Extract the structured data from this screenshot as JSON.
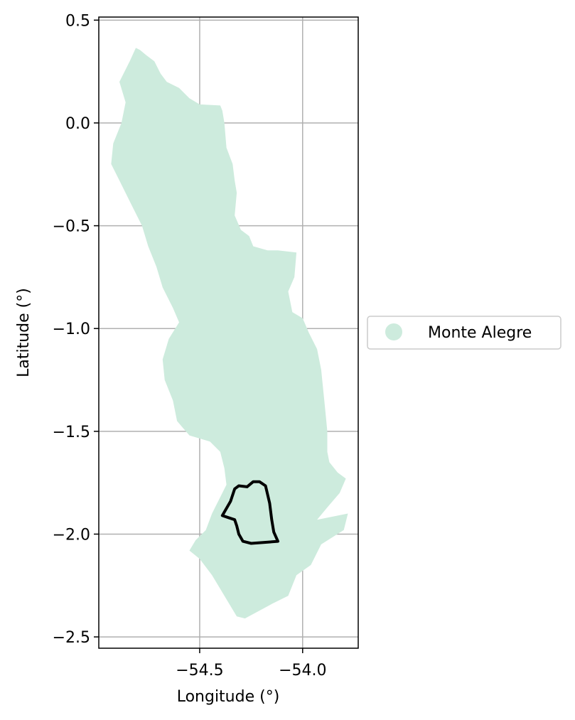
{
  "chart_data": {
    "type": "map",
    "title": "",
    "xlabel": "Longitude (°)",
    "ylabel": "Latitude (°)",
    "xlim": [
      -54.99,
      -53.73
    ],
    "ylim": [
      -2.555,
      0.515
    ],
    "x_ticks": [
      {
        "value": -54.5,
        "label": "−54.5"
      },
      {
        "value": -54.0,
        "label": "−54.0"
      }
    ],
    "y_ticks": [
      {
        "value": 0.5,
        "label": "0.5"
      },
      {
        "value": 0.0,
        "label": "0.0"
      },
      {
        "value": -0.5,
        "label": "−0.5"
      },
      {
        "value": -1.0,
        "label": "−1.0"
      },
      {
        "value": -1.5,
        "label": "−1.5"
      },
      {
        "value": -2.0,
        "label": "−2.0"
      },
      {
        "value": -2.5,
        "label": "−2.5"
      }
    ],
    "grid": true,
    "legend": {
      "placement": "outside-right",
      "entries": [
        {
          "label": "Monte Alegre",
          "color": "#cdebdd"
        }
      ]
    },
    "region_fill_color": "#cdebdd",
    "outline_color": "#000000",
    "region_polygon": [
      [
        -54.81,
        0.365
      ],
      [
        -54.79,
        0.355
      ],
      [
        -54.76,
        0.33
      ],
      [
        -54.72,
        0.3
      ],
      [
        -54.69,
        0.24
      ],
      [
        -54.66,
        0.2
      ],
      [
        -54.6,
        0.17
      ],
      [
        -54.55,
        0.12
      ],
      [
        -54.5,
        0.09
      ],
      [
        -54.4,
        0.085
      ],
      [
        -54.39,
        0.06
      ],
      [
        -54.38,
        0.0
      ],
      [
        -54.37,
        -0.12
      ],
      [
        -54.34,
        -0.2
      ],
      [
        -54.33,
        -0.28
      ],
      [
        -54.32,
        -0.34
      ],
      [
        -54.33,
        -0.45
      ],
      [
        -54.3,
        -0.52
      ],
      [
        -54.26,
        -0.55
      ],
      [
        -54.24,
        -0.6
      ],
      [
        -54.17,
        -0.62
      ],
      [
        -54.12,
        -0.62
      ],
      [
        -54.03,
        -0.63
      ],
      [
        -54.04,
        -0.75
      ],
      [
        -54.07,
        -0.82
      ],
      [
        -54.05,
        -0.92
      ],
      [
        -54.0,
        -0.95
      ],
      [
        -53.97,
        -1.02
      ],
      [
        -53.93,
        -1.1
      ],
      [
        -53.91,
        -1.2
      ],
      [
        -53.9,
        -1.3
      ],
      [
        -53.89,
        -1.4
      ],
      [
        -53.88,
        -1.5
      ],
      [
        -53.88,
        -1.6
      ],
      [
        -53.87,
        -1.65
      ],
      [
        -53.83,
        -1.7
      ],
      [
        -53.79,
        -1.73
      ],
      [
        -53.82,
        -1.8
      ],
      [
        -53.88,
        -1.87
      ],
      [
        -53.93,
        -1.93
      ],
      [
        -53.78,
        -1.9
      ],
      [
        -53.8,
        -1.98
      ],
      [
        -53.91,
        -2.05
      ],
      [
        -53.96,
        -2.15
      ],
      [
        -54.03,
        -2.2
      ],
      [
        -54.07,
        -2.3
      ],
      [
        -54.15,
        -2.34
      ],
      [
        -54.28,
        -2.41
      ],
      [
        -54.32,
        -2.4
      ],
      [
        -54.38,
        -2.3
      ],
      [
        -54.44,
        -2.2
      ],
      [
        -54.5,
        -2.12
      ],
      [
        -54.55,
        -2.08
      ],
      [
        -54.52,
        -2.03
      ],
      [
        -54.47,
        -1.98
      ],
      [
        -54.44,
        -1.9
      ],
      [
        -54.4,
        -1.82
      ],
      [
        -54.37,
        -1.76
      ],
      [
        -54.38,
        -1.68
      ],
      [
        -54.4,
        -1.6
      ],
      [
        -54.45,
        -1.55
      ],
      [
        -54.55,
        -1.52
      ],
      [
        -54.61,
        -1.45
      ],
      [
        -54.63,
        -1.35
      ],
      [
        -54.67,
        -1.25
      ],
      [
        -54.68,
        -1.15
      ],
      [
        -54.65,
        -1.05
      ],
      [
        -54.6,
        -0.97
      ],
      [
        -54.63,
        -0.9
      ],
      [
        -54.68,
        -0.8
      ],
      [
        -54.71,
        -0.7
      ],
      [
        -54.75,
        -0.6
      ],
      [
        -54.78,
        -0.5
      ],
      [
        -54.83,
        -0.4
      ],
      [
        -54.88,
        -0.3
      ],
      [
        -54.93,
        -0.2
      ],
      [
        -54.92,
        -0.1
      ],
      [
        -54.88,
        -0.0
      ],
      [
        -54.86,
        0.1
      ],
      [
        -54.89,
        0.2
      ],
      [
        -54.84,
        0.3
      ],
      [
        -54.81,
        0.365
      ]
    ],
    "outline_polygon": [
      [
        -54.39,
        -1.91
      ],
      [
        -54.35,
        -1.84
      ],
      [
        -54.33,
        -1.78
      ],
      [
        -54.31,
        -1.765
      ],
      [
        -54.27,
        -1.77
      ],
      [
        -54.24,
        -1.745
      ],
      [
        -54.21,
        -1.745
      ],
      [
        -54.18,
        -1.765
      ],
      [
        -54.16,
        -1.85
      ],
      [
        -54.15,
        -1.93
      ],
      [
        -54.14,
        -1.99
      ],
      [
        -54.12,
        -2.035
      ],
      [
        -54.18,
        -2.04
      ],
      [
        -54.25,
        -2.045
      ],
      [
        -54.29,
        -2.035
      ],
      [
        -54.31,
        -2.0
      ],
      [
        -54.32,
        -1.96
      ],
      [
        -54.33,
        -1.93
      ],
      [
        -54.36,
        -1.92
      ],
      [
        -54.39,
        -1.91
      ]
    ]
  }
}
